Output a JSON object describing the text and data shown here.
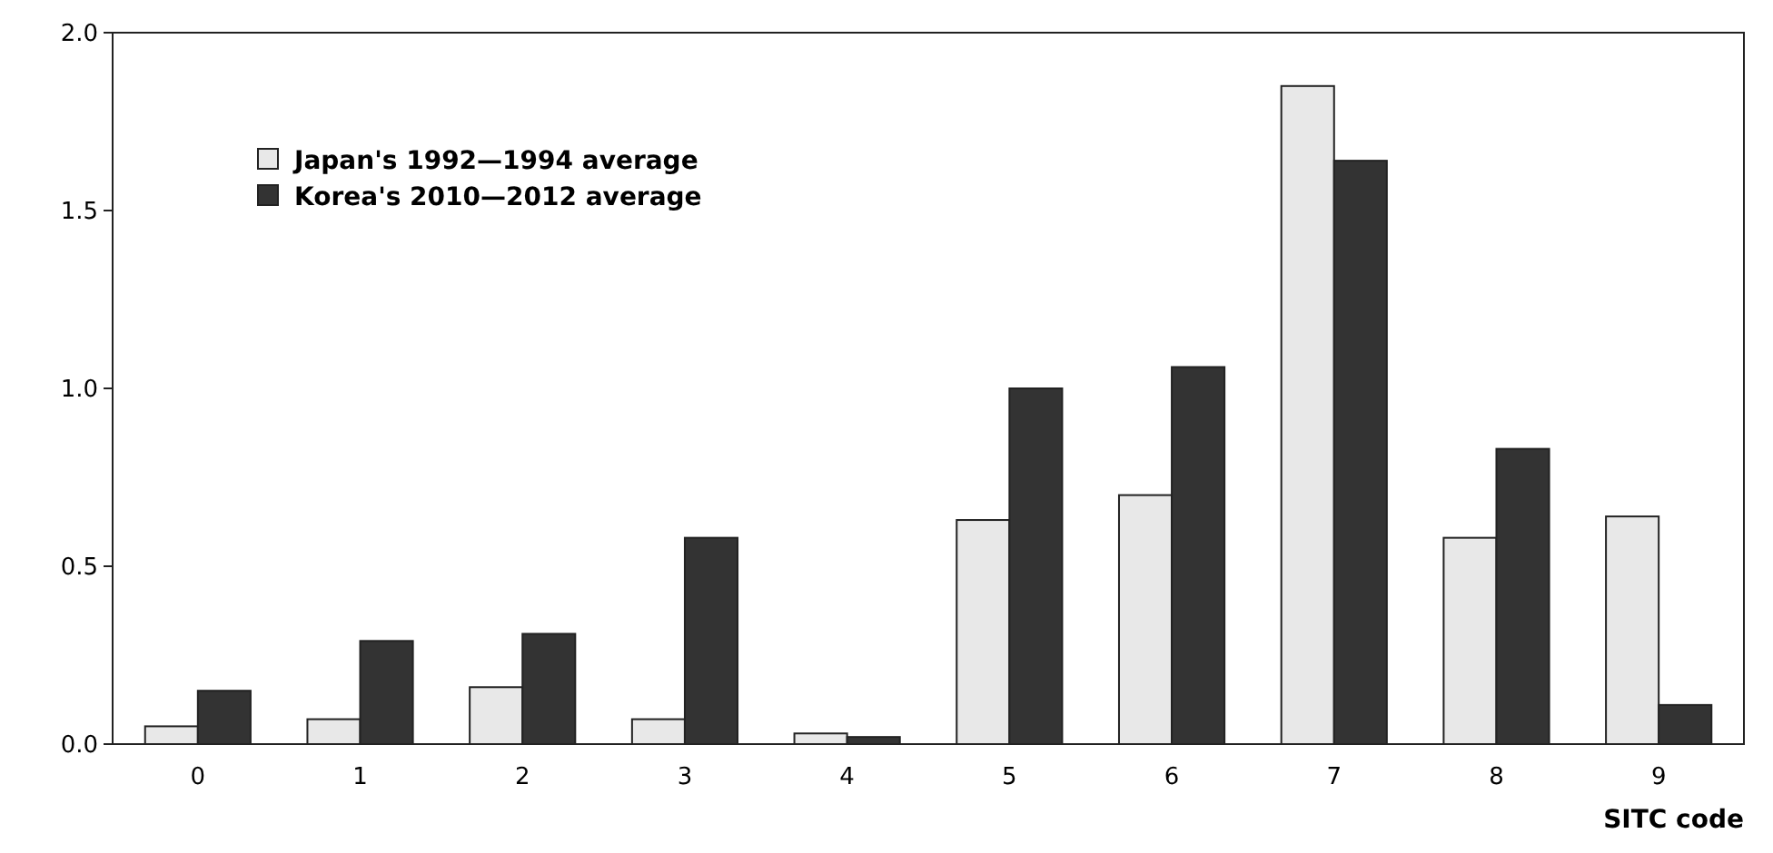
{
  "chart_data": {
    "type": "bar",
    "xlabel": "SITC code",
    "categories": [
      "0",
      "1",
      "2",
      "3",
      "4",
      "5",
      "6",
      "7",
      "8",
      "9"
    ],
    "series": [
      {
        "name": "Japan's 1992—1994 average",
        "color": "#e8e8e8",
        "values": [
          0.05,
          0.07,
          0.16,
          0.07,
          0.03,
          0.63,
          0.7,
          1.85,
          0.58,
          0.64
        ]
      },
      {
        "name": "Korea's 2010—2012 average",
        "color": "#333333",
        "values": [
          0.15,
          0.29,
          0.31,
          0.58,
          0.02,
          1.0,
          1.06,
          1.64,
          0.83,
          0.11
        ]
      }
    ],
    "ylim": [
      0,
      2
    ],
    "yticks": [
      {
        "value": 0,
        "label": "0.0"
      },
      {
        "value": 0.5,
        "label": "0.5"
      },
      {
        "value": 1,
        "label": "1.0"
      },
      {
        "value": 1.5,
        "label": "1.5"
      },
      {
        "value": 2,
        "label": "2.0"
      }
    ],
    "grid": false,
    "legend": "top left"
  }
}
